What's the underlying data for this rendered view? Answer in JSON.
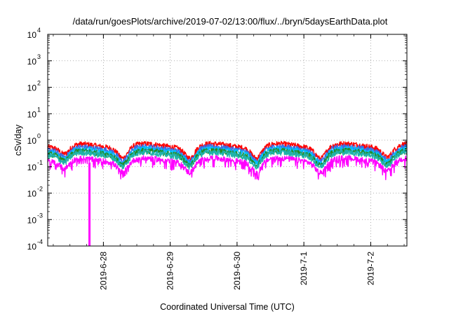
{
  "chart_data": {
    "type": "line",
    "title": "/data/run/goesPlots/archive/2019-07-02/13:00/flux/../bryn/5daysEarthData.plot",
    "xlabel": "Coordinated Universal Time (UTC)",
    "ylabel": "cSv/day",
    "y_scale": "log",
    "ylim": [
      0.0001,
      10000
    ],
    "y_ticks": [
      {
        "base": "10",
        "exp": "-4"
      },
      {
        "base": "10",
        "exp": "-3"
      },
      {
        "base": "10",
        "exp": "-2"
      },
      {
        "base": "10",
        "exp": "-1"
      },
      {
        "base": "10",
        "exp": "0"
      },
      {
        "base": "10",
        "exp": "1"
      },
      {
        "base": "10",
        "exp": "2"
      },
      {
        "base": "10",
        "exp": "3"
      },
      {
        "base": "10",
        "exp": "4"
      }
    ],
    "xlim": [
      "2019-06-27T04:00",
      "2019-07-02T13:00"
    ],
    "x_ticks": [
      {
        "label": "2019-6-28",
        "date": "2019-06-28T00:00"
      },
      {
        "label": "2019-6-29",
        "date": "2019-06-29T00:00"
      },
      {
        "label": "2019-6-30",
        "date": "2019-06-30T00:00"
      },
      {
        "label": "2019-7-1",
        "date": "2019-07-01T00:00"
      },
      {
        "label": "2019-7-2",
        "date": "2019-07-02T00:00"
      }
    ],
    "grid": true,
    "series": [
      {
        "color": "#ff0000",
        "level": 0.62
      },
      {
        "color": "#4169e1",
        "level": 0.48
      },
      {
        "color": "#00bfff",
        "level": 0.4
      },
      {
        "color": "#228b22",
        "level": 0.34
      },
      {
        "color": "#20b2aa",
        "level": 0.3
      },
      {
        "color": "#ff00ff",
        "level": 0.18
      }
    ],
    "dips": [
      {
        "date": "2019-06-27T10:00",
        "factor": 0.45
      },
      {
        "date": "2019-06-28T07:00",
        "factor": 0.35
      },
      {
        "date": "2019-06-29T07:00",
        "factor": 0.35
      },
      {
        "date": "2019-06-30T07:00",
        "factor": 0.35
      },
      {
        "date": "2019-07-01T06:00",
        "factor": 0.35
      },
      {
        "date": "2019-07-02T06:00",
        "factor": 0.4
      }
    ],
    "spike": {
      "date": "2019-06-27T19:00",
      "min": 0.0001,
      "color": "#ff00ff"
    }
  }
}
